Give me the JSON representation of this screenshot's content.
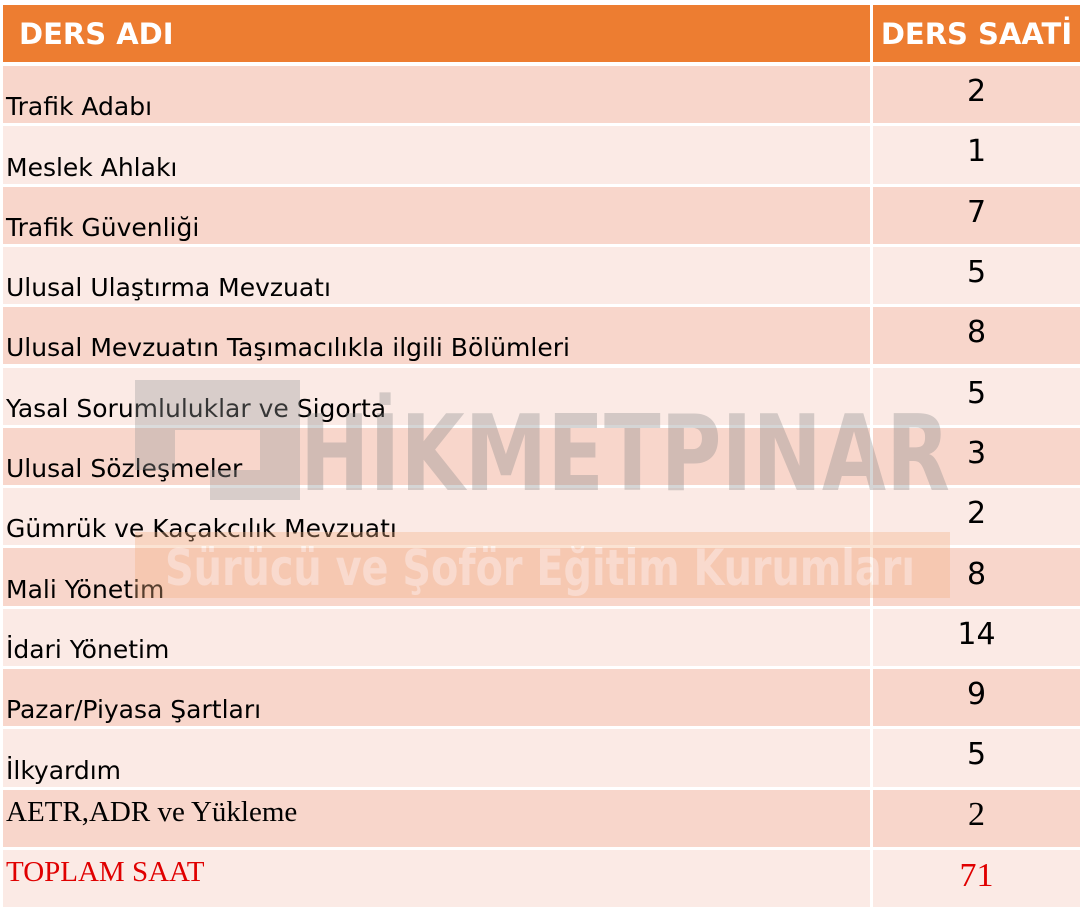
{
  "table": {
    "header": [
      "DERS ADI",
      "DERS SAATİ"
    ],
    "rows": [
      [
        "Trafik Adabı",
        2
      ],
      [
        "Meslek Ahlakı",
        1
      ],
      [
        "Trafik Güvenliği",
        7
      ],
      [
        "Ulusal Ulaştırma Mevzuatı",
        5
      ],
      [
        "Ulusal Mevzuatın Taşımacılıkla ilgili Bölümleri",
        8
      ],
      [
        "Yasal Sorumluluklar ve Sigorta",
        5
      ],
      [
        "Ulusal Sözleşmeler",
        3
      ],
      [
        "Gümrük ve Kaçakcılık Mevzuatı",
        2
      ],
      [
        "Mali Yönetim",
        8
      ],
      [
        "İdari Yönetim",
        14
      ],
      [
        "Pazar/Piyasa Şartları",
        9
      ],
      [
        "İlkyardım",
        5
      ],
      [
        "AETR,ADR ve Yükleme",
        2
      ]
    ],
    "total": [
      "TOPLAM SAAT",
      71
    ]
  },
  "watermark": {
    "brand": "HİKMETPINAR",
    "tagline": "Sürücü ve Şoför Eğitim Kurumları"
  }
}
